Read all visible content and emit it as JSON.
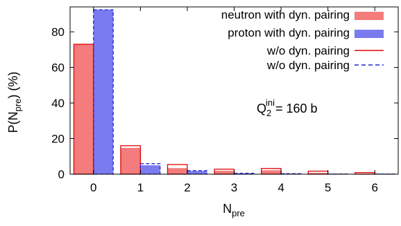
{
  "chart_data": {
    "type": "bar",
    "xlabel_main": "N",
    "xlabel_sub": "pre",
    "ylabel_parts": {
      "a": "P(N",
      "sub": "pre",
      "b": ") (%)"
    },
    "categories": [
      "0",
      "1",
      "2",
      "3",
      "4",
      "5",
      "6"
    ],
    "x": [
      0,
      1,
      2,
      3,
      4,
      5,
      6
    ],
    "xlim": [
      -0.5,
      6.5
    ],
    "ylim": [
      0,
      94
    ],
    "yticks": [
      0,
      20,
      40,
      60,
      80
    ],
    "grid": false,
    "legend_position": "top-right",
    "annotation": {
      "main": "Q",
      "sub": "2",
      "sup": "ini",
      "rest": "= 160 b"
    },
    "series": [
      {
        "name": "neutron with dyn. pairing",
        "style": "filled",
        "color": "#f47c7c",
        "values": [
          73.0,
          14.8,
          3.4,
          1.9,
          2.2,
          0.7,
          0.3
        ]
      },
      {
        "name": "proton with dyn. pairing",
        "style": "filled",
        "color": "#7b7bf0",
        "values": [
          92.4,
          5.0,
          1.8,
          0.4,
          0.2,
          0.1,
          0.1
        ]
      },
      {
        "name": "w/o dyn. pairing",
        "style": "solid-outline",
        "color": "#e00000",
        "values": [
          73.0,
          16.0,
          5.4,
          2.8,
          3.2,
          1.7,
          0.9
        ]
      },
      {
        "name": "w/o dyn. pairing",
        "style": "dashed-outline",
        "color": "#2222cc",
        "values": [
          92.4,
          5.9,
          2.0,
          0.5,
          0.3,
          0.1,
          0.1
        ]
      }
    ]
  }
}
